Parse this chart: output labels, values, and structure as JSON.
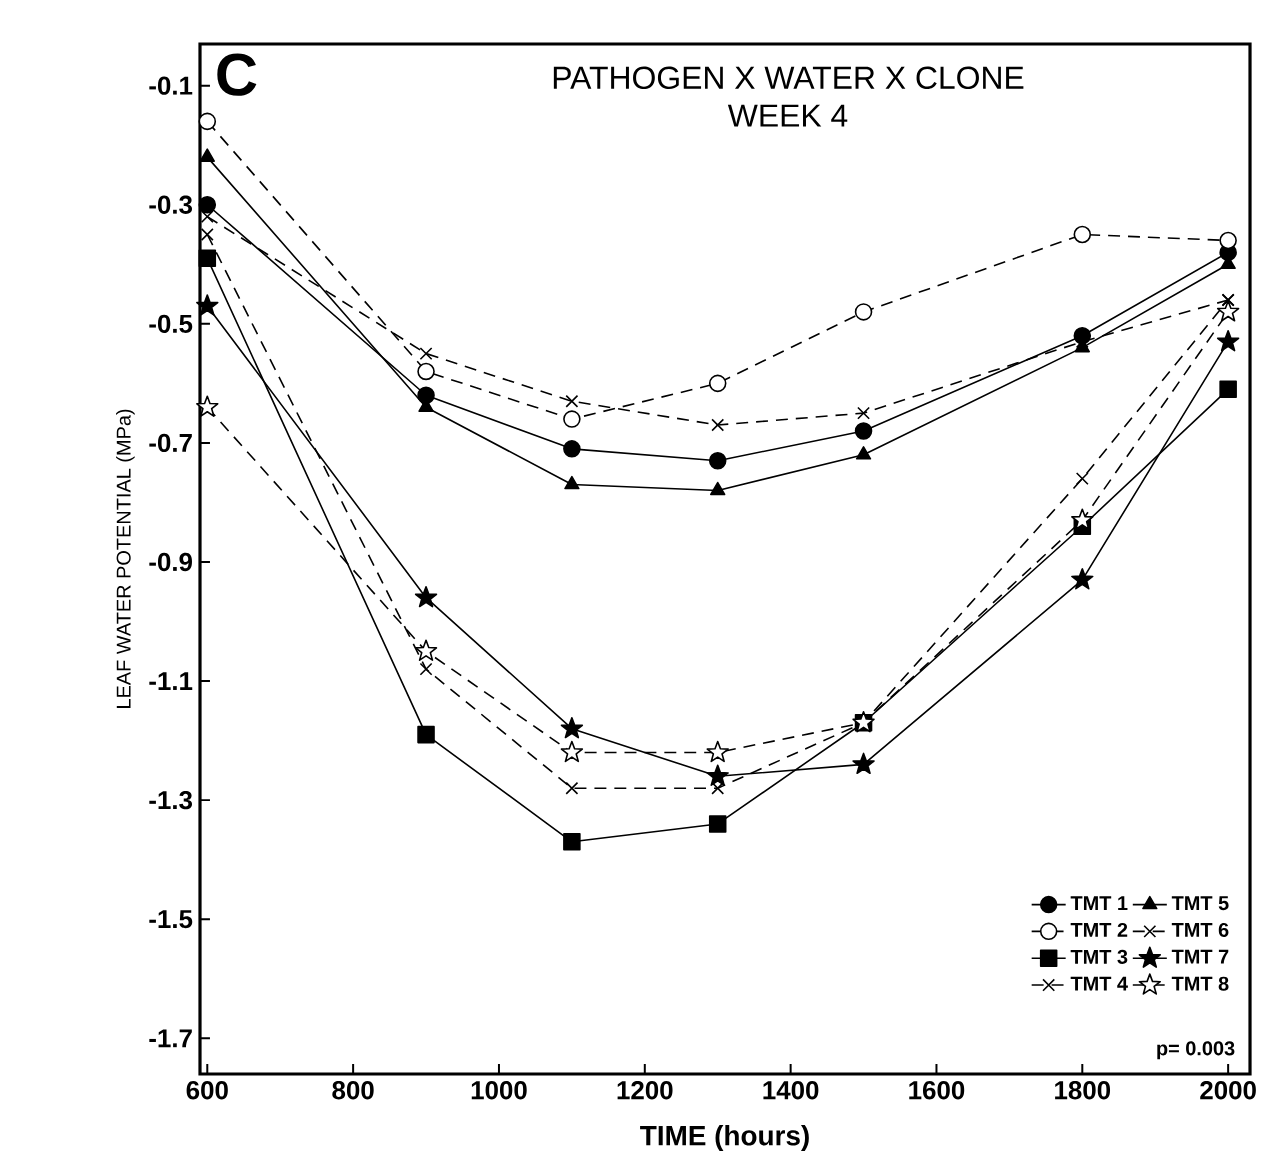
{
  "chart_data": {
    "type": "line",
    "title": "PATHOGEN X WATER X CLONE",
    "subtitle": "WEEK 4",
    "xlabel": "TIME (hours)",
    "ylabel": "LEAF WATER POTENTIAL (MPa)",
    "x": [
      600,
      900,
      1100,
      1300,
      1500,
      1800,
      2000
    ],
    "xlim": [
      590,
      2030
    ],
    "ylim": [
      -1.76,
      -0.03
    ],
    "xticks": [
      600,
      800,
      1000,
      1200,
      1400,
      1600,
      1800,
      2000
    ],
    "yticks": [
      -1.7,
      -1.5,
      -1.3,
      -1.1,
      -0.9,
      -0.7,
      -0.5,
      -0.3,
      -0.1
    ],
    "grid": false,
    "legend": "bottom right",
    "annotations": [
      "C",
      "p= 0.003"
    ],
    "series": [
      {
        "name": "TMT 1",
        "color": "#000000",
        "marker": "circle",
        "line_style": "solid",
        "values": [
          -0.3,
          -0.62,
          -0.71,
          -0.73,
          -0.68,
          -0.52,
          -0.38
        ]
      },
      {
        "name": "TMT 2",
        "color": "#000000",
        "marker": "circle",
        "line_style": "dashed",
        "values": [
          -0.16,
          -0.58,
          -0.66,
          -0.6,
          -0.48,
          -0.35,
          -0.36
        ]
      },
      {
        "name": "TMT 3",
        "color": "#000000",
        "marker": "square",
        "line_style": "solid",
        "values": [
          -0.39,
          -1.19,
          -1.37,
          -1.34,
          -1.17,
          -0.84,
          -0.61
        ]
      },
      {
        "name": "TMT 4",
        "color": "#000000",
        "marker": "cross",
        "line_style": "dashed",
        "values": [
          -0.35,
          -1.08,
          -1.28,
          -1.28,
          -1.17,
          -0.76,
          -0.46
        ]
      },
      {
        "name": "TMT 5",
        "color": "#000000",
        "marker": "triangle",
        "line_style": "solid",
        "values": [
          -0.22,
          -0.64,
          -0.77,
          -0.78,
          -0.72,
          -0.54,
          -0.4
        ]
      },
      {
        "name": "TMT 6",
        "color": "#000000",
        "marker": "cross",
        "line_style": "dashed",
        "values": [
          -0.32,
          -0.55,
          -0.63,
          -0.67,
          -0.65,
          -0.53,
          -0.46
        ]
      },
      {
        "name": "TMT 7",
        "color": "#000000",
        "marker": "star",
        "line_style": "solid",
        "values": [
          -0.47,
          -0.96,
          -1.18,
          -1.26,
          -1.24,
          -0.93,
          -0.53
        ]
      },
      {
        "name": "TMT 8",
        "color": "#000000",
        "marker": "star",
        "line_style": "dashed",
        "values": [
          -0.64,
          -1.05,
          -1.22,
          -1.22,
          -1.17,
          -0.83,
          -0.48
        ]
      }
    ]
  }
}
